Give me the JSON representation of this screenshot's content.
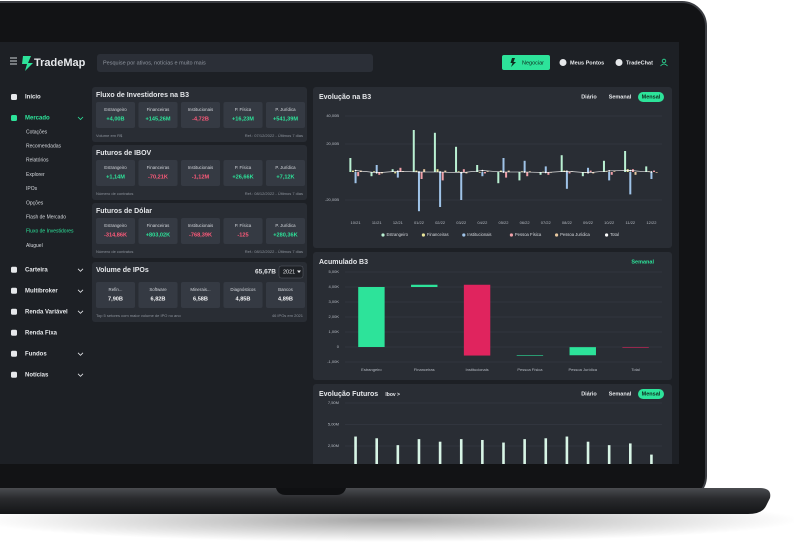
{
  "header": {
    "logo": "TradeMap",
    "search_placeholder": "Pesquise por ativos, notícias e muito mais",
    "buttons": [
      "Negociar",
      "Meus Pontos",
      "TradeChat"
    ]
  },
  "sidebar": {
    "items": [
      {
        "label": "Início"
      },
      {
        "label": "Mercado",
        "active": true,
        "expandable": true,
        "children": [
          {
            "label": "Cotações"
          },
          {
            "label": "Recomendadas"
          },
          {
            "label": "Relatórios"
          },
          {
            "label": "Explorer"
          },
          {
            "label": "IPOs"
          },
          {
            "label": "Opções"
          },
          {
            "label": "Flash de Mercado"
          },
          {
            "label": "Fluxo de Investidores",
            "active": true
          },
          {
            "label": "Aluguel"
          }
        ]
      },
      {
        "label": "Carteira",
        "expandable": true
      },
      {
        "label": "Multibroker",
        "expandable": true
      },
      {
        "label": "Renda Variável",
        "expandable": true
      },
      {
        "label": "Renda Fixa"
      },
      {
        "label": "Fundos",
        "expandable": true
      },
      {
        "label": "Notícias",
        "expandable": true
      }
    ]
  },
  "cards": [
    {
      "title": "Fluxo de Investidores na B3",
      "tiles": [
        {
          "label": "Estrangeiro",
          "value": "+4,00B"
        },
        {
          "label": "Financeiras",
          "value": "+145,26M"
        },
        {
          "label": "Institucionais",
          "value": "-4,72B"
        },
        {
          "label": "P. Física",
          "value": "+16,23M"
        },
        {
          "label": "P. Jurídica",
          "value": "+541,39M"
        }
      ],
      "note": "Volume em R$",
      "ref": "Ref.: 07/12/2022 - Últimos 7 dias"
    },
    {
      "title": "Futuros de IBOV",
      "tiles": [
        {
          "label": "Estrangeiro",
          "value": "+1,14M"
        },
        {
          "label": "Financeiras",
          "value": "-70,21K"
        },
        {
          "label": "Institucionais",
          "value": "-1,12M"
        },
        {
          "label": "P. Física",
          "value": "+26,66K"
        },
        {
          "label": "P. Jurídica",
          "value": "+7,12K"
        }
      ],
      "note": "Número de contratos",
      "ref": "Ref.: 08/12/2022 - Últimos 7 dias"
    },
    {
      "title": "Futuros de Dólar",
      "tiles": [
        {
          "label": "Estrangeiro",
          "value": "-314,86K"
        },
        {
          "label": "Financeiras",
          "value": "+803,02K"
        },
        {
          "label": "Institucionais",
          "value": "-768,39K"
        },
        {
          "label": "P. Física",
          "value": "-125"
        },
        {
          "label": "P. Jurídica",
          "value": "+280,36K"
        }
      ],
      "note": "Número de contratos",
      "ref": "Ref.: 08/12/2022 - Últimos 7 dias"
    },
    {
      "title": "Volume de IPOs",
      "total": "65,67B",
      "year": "2021",
      "tiles": [
        {
          "label": "Refin...",
          "value": "7,90B"
        },
        {
          "label": "Software",
          "value": "6,82B"
        },
        {
          "label": "Minerais...",
          "value": "6,58B"
        },
        {
          "label": "Diagnósticos",
          "value": "4,85B"
        },
        {
          "label": "Bancos",
          "value": "4,89B"
        }
      ],
      "note": "Top 5 setores com maior volume de IPO no ano",
      "ref": "46 IPOs em 2021"
    }
  ],
  "chart_data": [
    {
      "type": "bar",
      "title": "Evolução na B3",
      "tabs": [
        {
          "label": "Diário"
        },
        {
          "label": "Semanal"
        },
        {
          "label": "Mensal",
          "active": true
        }
      ],
      "categories": [
        "10/21",
        "11/21",
        "12/21",
        "01/22",
        "02/22",
        "03/22",
        "04/22",
        "05/22",
        "06/22",
        "07/22",
        "08/22",
        "09/22",
        "10/22",
        "11/22",
        "12/22"
      ],
      "ylim": [
        -30,
        50
      ],
      "yticks": [
        {
          "value": 40,
          "label": "40,00B"
        },
        {
          "value": 20,
          "label": "20,00B"
        },
        {
          "value": -20,
          "label": "-20,00B"
        }
      ],
      "grid": true,
      "series": [
        {
          "name": "Estrangeiro",
          "color": "#b9f0d2",
          "values": [
            10,
            -3,
            2,
            30,
            28,
            18,
            5,
            -8,
            -6,
            -2,
            12,
            -3,
            8,
            15,
            4
          ]
        },
        {
          "name": "Financeiras",
          "color": "#e8e59a",
          "values": [
            1,
            0.5,
            -1,
            1,
            2,
            0.5,
            -0.5,
            1,
            0.5,
            0.2,
            1,
            -0.5,
            0.3,
            2,
            0.5
          ]
        },
        {
          "name": "Institucionais",
          "color": "#9fc3e8",
          "values": [
            -8,
            5,
            -4,
            -28,
            -25,
            -20,
            -3,
            10,
            8,
            4,
            -12,
            3,
            -6,
            -16,
            -5
          ]
        },
        {
          "name": "Pessoa Física",
          "color": "#f0a0a8",
          "values": [
            -3,
            -2,
            3,
            -5,
            -6,
            2,
            -1,
            -4,
            -3,
            -2,
            -1,
            1,
            -2,
            2,
            1
          ]
        },
        {
          "name": "Pessoa Jurídica",
          "color": "#e8c9a0",
          "values": [
            1,
            -1,
            0.5,
            2,
            1,
            -1,
            0.5,
            1,
            0.5,
            -0.5,
            0.5,
            -1,
            0.5,
            -2,
            -0.5
          ]
        },
        {
          "name": "Total",
          "color": "#ffffff",
          "kind": "line",
          "values": [
            1,
            -0.5,
            0.5,
            0,
            0,
            -0.5,
            1,
            0,
            0,
            -0.3,
            0.5,
            -0.5,
            0.8,
            1,
            0
          ]
        }
      ]
    },
    {
      "type": "waterfall",
      "title": "Acumulado B3",
      "tabs": [
        {
          "label": "Semanal",
          "active": true
        }
      ],
      "categories": [
        "Estrangeiro",
        "Financeiras",
        "Institucionais",
        "Pessoa Física",
        "Pessoa Jurídica",
        "Total"
      ],
      "values": [
        4,
        0.15,
        -4.72,
        0.02,
        0.54,
        -0.01
      ],
      "last_is_total": true,
      "colors": {
        "positive": "#2de39a",
        "negative": "#e0245e"
      },
      "ylim": [
        -1.3,
        5.4
      ],
      "yticks": [
        {
          "value": 5,
          "label": "5,00K"
        },
        {
          "value": 4,
          "label": "4,00K"
        },
        {
          "value": 3,
          "label": "3,00K"
        },
        {
          "value": 2,
          "label": "2,00K"
        },
        {
          "value": 1,
          "label": "1,00K"
        },
        0,
        {
          "value": -1,
          "label": "-1,00K"
        }
      ],
      "grid": true
    },
    {
      "type": "bar",
      "title": "Evolução Futuros",
      "subtitle": "Ibov >",
      "tabs": [
        {
          "label": "Diário"
        },
        {
          "label": "Semanal"
        },
        {
          "label": "Mensal",
          "active": true
        }
      ],
      "values": [
        3.6,
        3.4,
        2.6,
        3.3,
        3.0,
        3.3,
        3.2,
        2.9,
        3.3,
        3.4,
        3.6,
        3.0,
        2.6,
        2.8,
        1.5
      ],
      "color": "#d8f5e6",
      "ylim": [
        0,
        7.5
      ],
      "yticks": [
        {
          "value": 7.5,
          "label": "7,50M"
        },
        {
          "value": 5,
          "label": "5,00M"
        },
        {
          "value": 2.5,
          "label": "2,50M"
        }
      ],
      "grid": true
    }
  ]
}
